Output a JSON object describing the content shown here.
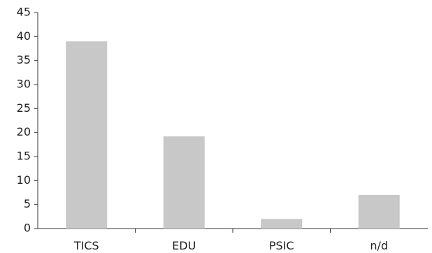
{
  "chart_data": {
    "type": "bar",
    "categories": [
      "TICS",
      "EDU",
      "PSIC",
      "n/d"
    ],
    "values": [
      39,
      19.2,
      2,
      7
    ],
    "title": "",
    "xlabel": "",
    "ylabel": "",
    "ylim": [
      0,
      45
    ],
    "yticks": [
      0,
      5,
      10,
      15,
      20,
      25,
      30,
      35,
      40,
      45
    ],
    "grid": false,
    "bar_color": "#c8c8c8",
    "axis_color": "#333333"
  }
}
